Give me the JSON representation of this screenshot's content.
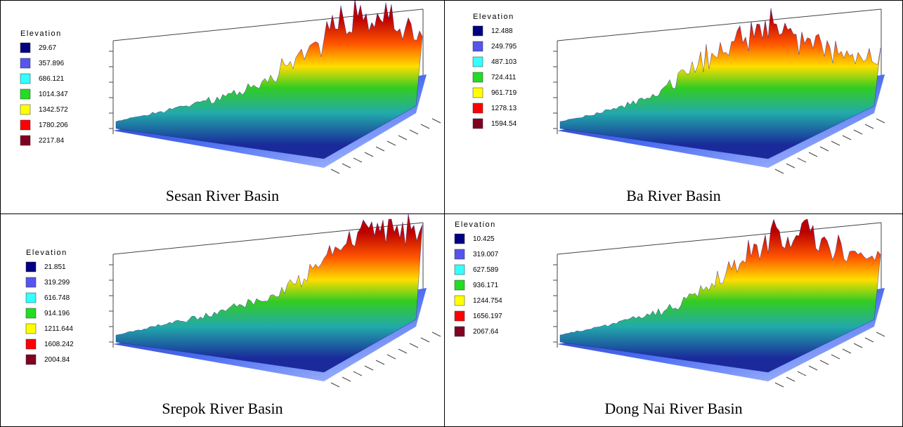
{
  "panels": [
    {
      "legend": {
        "title": "Elevation",
        "items": [
          {
            "label": "29.67",
            "color": "#000080"
          },
          {
            "label": "357.896",
            "color": "#5555ee"
          },
          {
            "label": "686.121",
            "color": "#33ffff"
          },
          {
            "label": "1014.347",
            "color": "#22dd22"
          },
          {
            "label": "1342.572",
            "color": "#ffff00"
          },
          {
            "label": "1780.206",
            "color": "#ff0000"
          },
          {
            "label": "2217.84",
            "color": "#800020"
          }
        ]
      },
      "caption": "Sesan River Basin"
    },
    {
      "legend": {
        "title": "Elevation",
        "items": [
          {
            "label": "12.488",
            "color": "#000080"
          },
          {
            "label": "249.795",
            "color": "#5555ee"
          },
          {
            "label": "487.103",
            "color": "#33ffff"
          },
          {
            "label": "724.411",
            "color": "#22dd22"
          },
          {
            "label": "961.719",
            "color": "#ffff00"
          },
          {
            "label": "1278.13",
            "color": "#ff0000"
          },
          {
            "label": "1594.54",
            "color": "#800020"
          }
        ]
      },
      "caption": "Ba River Basin"
    },
    {
      "legend": {
        "title": "Elevation",
        "items": [
          {
            "label": "21.851",
            "color": "#000080"
          },
          {
            "label": "319.299",
            "color": "#5555ee"
          },
          {
            "label": "616.748",
            "color": "#33ffff"
          },
          {
            "label": "914.196",
            "color": "#22dd22"
          },
          {
            "label": "1211.644",
            "color": "#ffff00"
          },
          {
            "label": "1608.242",
            "color": "#ff0000"
          },
          {
            "label": "2004.84",
            "color": "#800020"
          }
        ]
      },
      "caption": "Srepok River Basin"
    },
    {
      "legend": {
        "title": "Elevation",
        "items": [
          {
            "label": "10.425",
            "color": "#000080"
          },
          {
            "label": "319.007",
            "color": "#5555ee"
          },
          {
            "label": "627.589",
            "color": "#33ffff"
          },
          {
            "label": "936.171",
            "color": "#22dd22"
          },
          {
            "label": "1244.754",
            "color": "#ffff00"
          },
          {
            "label": "1656.197",
            "color": "#ff0000"
          },
          {
            "label": "2067.64",
            "color": "#800020"
          }
        ]
      },
      "caption": "Dong Nai River Basin"
    }
  ]
}
